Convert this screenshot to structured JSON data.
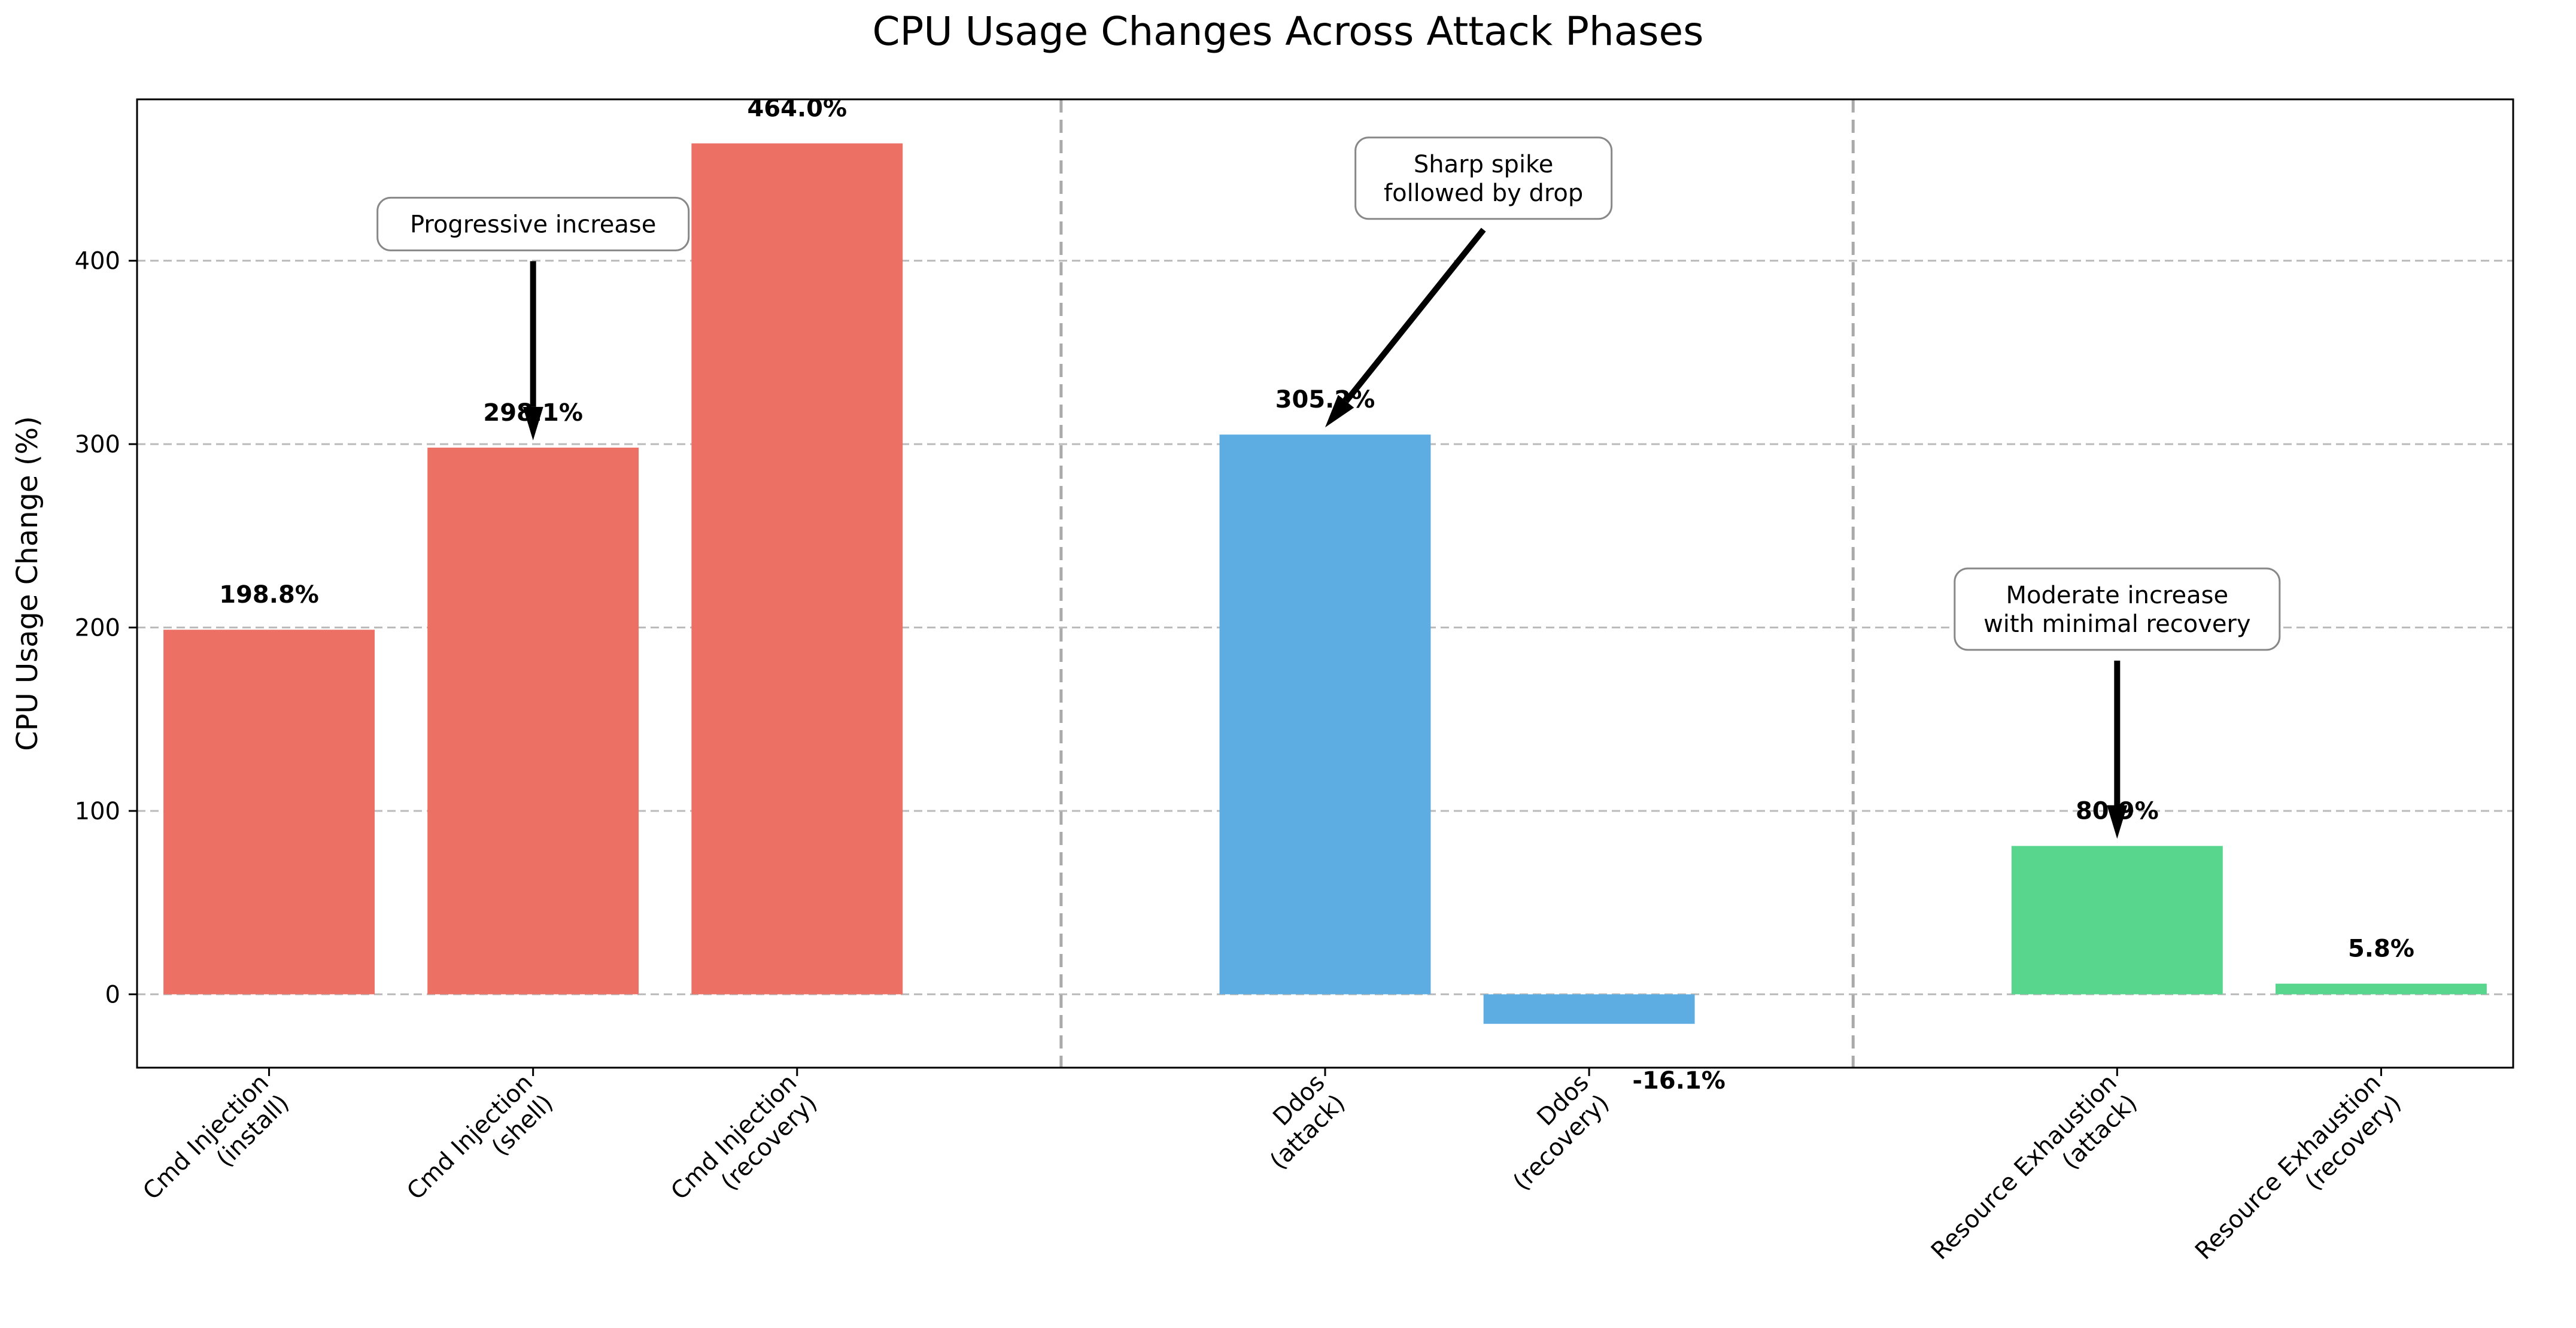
{
  "chart_data": {
    "type": "bar",
    "title": "CPU Usage Changes Across Attack Phases",
    "ylabel": "CPU Usage Change (%)",
    "xlabel": "",
    "ylim": [
      -40,
      488
    ],
    "yticks": [
      0,
      100,
      200,
      300,
      400
    ],
    "grid": "horizontal dashed",
    "categories": [
      {
        "line1": "Cmd Injection",
        "line2": "(install)"
      },
      {
        "line1": "Cmd Injection",
        "line2": "(shell)"
      },
      {
        "line1": "Cmd Injection",
        "line2": "(recovery)"
      },
      {
        "line1": "Ddos",
        "line2": "(attack)"
      },
      {
        "line1": "Ddos",
        "line2": "(recovery)"
      },
      {
        "line1": "Resource Exhaustion",
        "line2": "(attack)"
      },
      {
        "line1": "Resource Exhaustion",
        "line2": "(recovery)"
      }
    ],
    "x": [
      0,
      1,
      2,
      4,
      5,
      7,
      8
    ],
    "values": [
      198.8,
      298.1,
      464.0,
      305.2,
      -16.1,
      80.9,
      5.8
    ],
    "value_labels": [
      "198.8%",
      "298.1%",
      "464.0%",
      "305.2%",
      "-16.1%",
      "80.9%",
      "5.8%"
    ],
    "group_colors": [
      "#ec7063",
      "#ec7063",
      "#ec7063",
      "#5dade2",
      "#5dade2",
      "#58d68d",
      "#58d68d"
    ],
    "separators_x": [
      3,
      6
    ],
    "annotations": [
      {
        "text": [
          "Progressive increase"
        ],
        "target": {
          "x": 1,
          "y": 298.1
        },
        "text_pos": {
          "x": 1,
          "y": 420
        }
      },
      {
        "text": [
          "Sharp spike",
          "followed by drop"
        ],
        "target": {
          "x": 4,
          "y": 305.2
        },
        "text_pos": {
          "x": 4.6,
          "y": 445
        }
      },
      {
        "text": [
          "Moderate increase",
          "with minimal recovery"
        ],
        "target": {
          "x": 7,
          "y": 80.9
        },
        "text_pos": {
          "x": 7,
          "y": 210
        }
      }
    ]
  }
}
